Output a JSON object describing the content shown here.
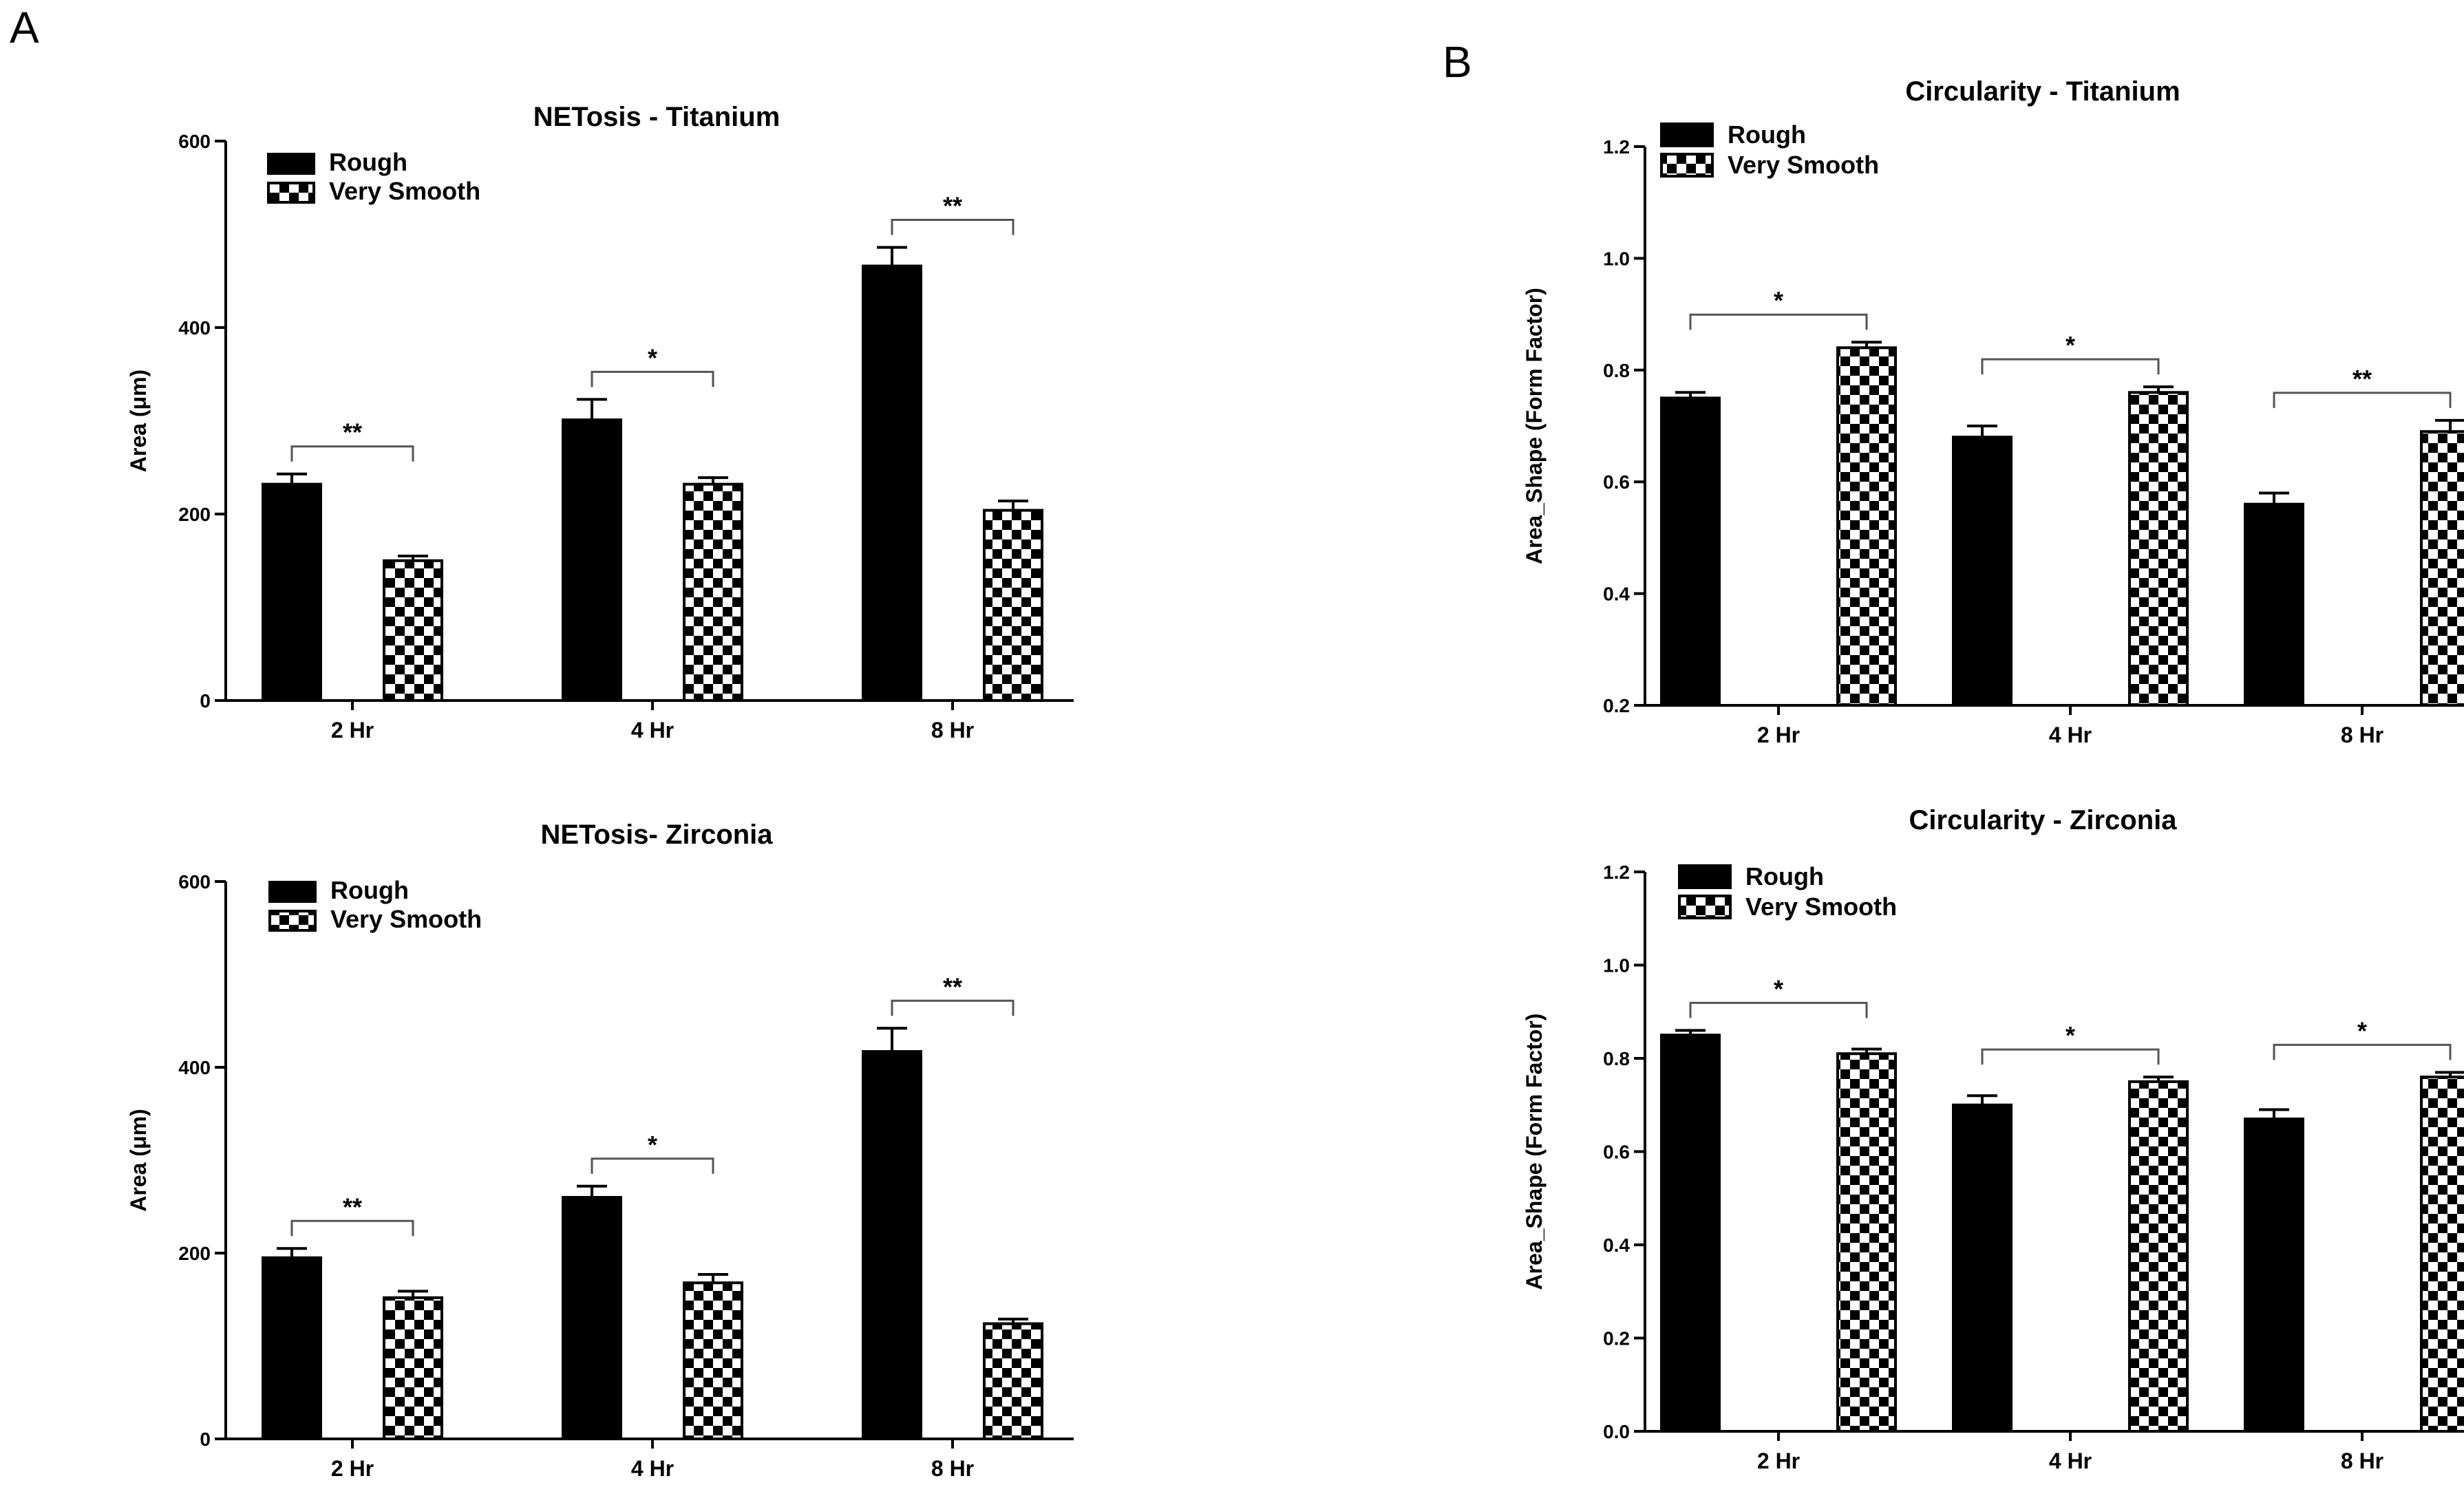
{
  "panels": [
    {
      "label": "A"
    },
    {
      "label": "B"
    }
  ],
  "colors": {
    "rough": "#000000",
    "very_smooth_check_dark": "#000000",
    "very_smooth_check_light": "#ffffff",
    "axis": "#000000"
  },
  "legend": {
    "rough": "Rough",
    "very_smooth": "Very Smooth"
  },
  "chart_data": [
    {
      "id": "netosis-titanium",
      "type": "bar",
      "title": "NETosis - Titanium",
      "xlabel": "",
      "ylabel": "Area (μm)",
      "ylim": [
        0,
        600
      ],
      "yticks": [
        0,
        200,
        400,
        600
      ],
      "ytick_labels": [
        "0",
        "200",
        "400",
        "600"
      ],
      "categories": [
        "2 Hr",
        "4 Hr",
        "8 Hr"
      ],
      "series": [
        {
          "name": "Rough",
          "values": [
            232,
            301,
            466
          ],
          "errors": [
            11,
            22,
            20
          ]
        },
        {
          "name": "Very Smooth",
          "values": [
            150,
            232,
            204
          ],
          "errors": [
            5,
            7,
            10
          ]
        }
      ],
      "significance": [
        "**",
        "*",
        "**"
      ],
      "legend_position": "top-left"
    },
    {
      "id": "netosis-zirconia",
      "type": "bar",
      "title": "NETosis- Zirconia",
      "xlabel": "",
      "ylabel": "Area (μm)",
      "ylim": [
        0,
        600
      ],
      "yticks": [
        0,
        200,
        400,
        600
      ],
      "ytick_labels": [
        "0",
        "200",
        "400",
        "600"
      ],
      "categories": [
        "2 Hr",
        "4 Hr",
        "8 Hr"
      ],
      "series": [
        {
          "name": "Rough",
          "values": [
            195,
            260,
            417
          ],
          "errors": [
            10,
            12,
            25
          ]
        },
        {
          "name": "Very Smooth",
          "values": [
            152,
            168,
            124
          ],
          "errors": [
            7,
            9,
            5
          ]
        }
      ],
      "significance": [
        "**",
        "*",
        "**"
      ],
      "legend_position": "top-left"
    },
    {
      "id": "circularity-titanium",
      "type": "bar",
      "title": "Circularity - Titanium",
      "xlabel": "",
      "ylabel": "Area_Shape (Form Factor)",
      "ylim": [
        0.2,
        1.2
      ],
      "yticks": [
        0.2,
        0.4,
        0.6,
        0.8,
        1.0,
        1.2
      ],
      "ytick_labels": [
        "0.2",
        "0.4",
        "0.6",
        "0.8",
        "1.0",
        "1.2"
      ],
      "categories": [
        "2 Hr",
        "4 Hr",
        "8 Hr"
      ],
      "series": [
        {
          "name": "Rough",
          "values": [
            0.75,
            0.68,
            0.56
          ],
          "errors": [
            0.01,
            0.02,
            0.02
          ]
        },
        {
          "name": "Very Smooth",
          "values": [
            0.84,
            0.76,
            0.69
          ],
          "errors": [
            0.01,
            0.01,
            0.02
          ]
        }
      ],
      "significance": [
        "*",
        "*",
        "**"
      ],
      "legend_position": "top-left"
    },
    {
      "id": "circularity-zirconia",
      "type": "bar",
      "title": "Circularity - Zirconia",
      "xlabel": "",
      "ylabel": "Area_Shape (Form Factor)",
      "ylim": [
        0.0,
        1.2
      ],
      "yticks": [
        0.0,
        0.2,
        0.4,
        0.6,
        0.8,
        1.0,
        1.2
      ],
      "ytick_labels": [
        "0.0",
        "0.2",
        "0.4",
        "0.6",
        "0.8",
        "1.0",
        "1.2"
      ],
      "categories": [
        "2 Hr",
        "4 Hr",
        "8 Hr"
      ],
      "series": [
        {
          "name": "Rough",
          "values": [
            0.85,
            0.7,
            0.67
          ],
          "errors": [
            0.01,
            0.02,
            0.02
          ]
        },
        {
          "name": "Very Smooth",
          "values": [
            0.81,
            0.75,
            0.76
          ],
          "errors": [
            0.01,
            0.01,
            0.01
          ]
        }
      ],
      "significance": [
        "*",
        "*",
        "*"
      ],
      "legend_position": "top-left"
    }
  ]
}
